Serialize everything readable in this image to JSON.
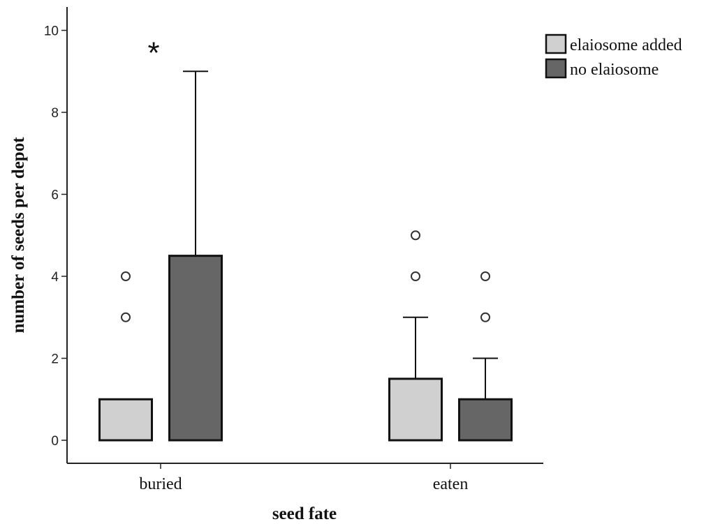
{
  "chart_data": {
    "type": "bar",
    "title": "",
    "xlabel": "seed fate",
    "ylabel": "number of seeds per depot",
    "ylim": [
      0,
      10.5
    ],
    "yticks": [
      "0",
      "2",
      "4",
      "6",
      "8",
      "10"
    ],
    "categories": [
      "buried",
      "eaten"
    ],
    "series": [
      {
        "name": "elaiosome added",
        "color": "#d0d0d0",
        "values": [
          1,
          1.5
        ],
        "whisker_upper": [
          null,
          3
        ],
        "outliers": [
          [
            3,
            4
          ],
          [
            4,
            5
          ]
        ]
      },
      {
        "name": "no elaiosome",
        "color": "#666666",
        "values": [
          4.5,
          1
        ],
        "whisker_upper": [
          9,
          2
        ],
        "outliers": [
          [],
          [
            3,
            4
          ]
        ]
      }
    ],
    "annotations": [
      {
        "text": "*",
        "category": "buried",
        "y": 9.8
      }
    ],
    "legend_position": "top-right",
    "grid": false
  }
}
